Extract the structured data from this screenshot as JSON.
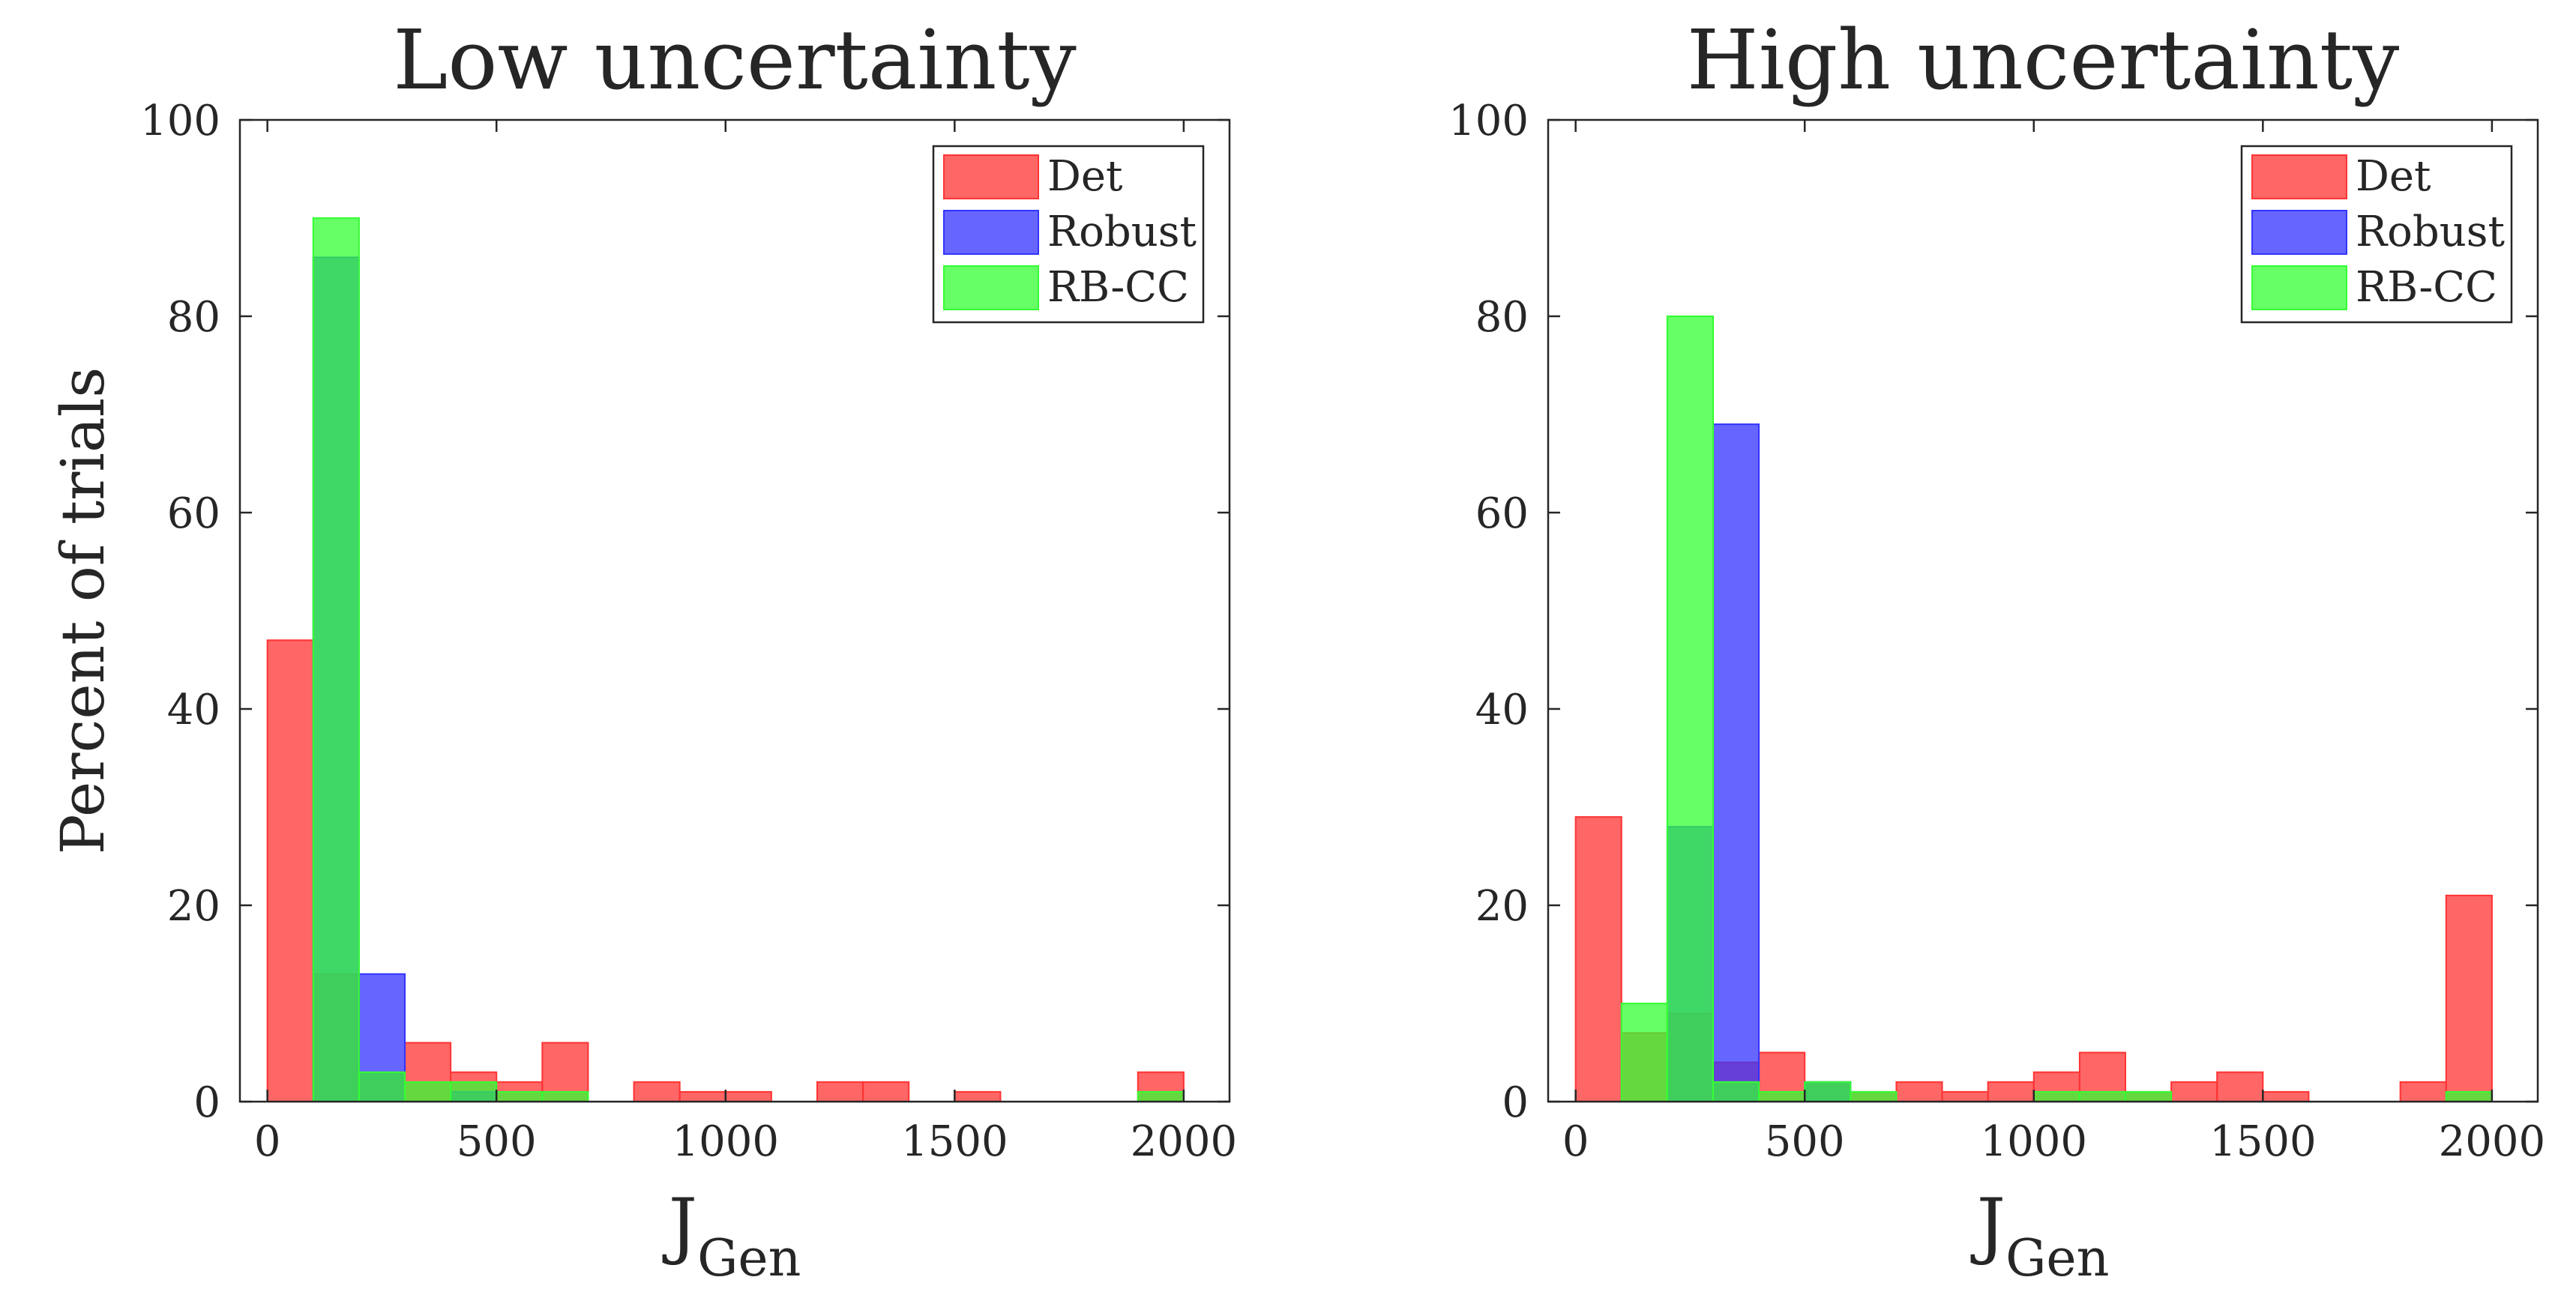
{
  "chart_data": [
    {
      "type": "bar",
      "subtype": "overlaid-histogram",
      "title": "Low uncertainty",
      "xlabel": "J",
      "xlabel_subscript": "Gen",
      "ylabel": "Percent of trials",
      "xlim": [
        -60,
        2100
      ],
      "ylim": [
        0,
        100
      ],
      "xticks": [
        0,
        500,
        1000,
        1500,
        2000
      ],
      "yticks": [
        0,
        20,
        40,
        60,
        80,
        100
      ],
      "bin_width": 100,
      "bin_starts": [
        0,
        100,
        200,
        300,
        400,
        500,
        600,
        700,
        800,
        900,
        1000,
        1100,
        1200,
        1300,
        1400,
        1500,
        1600,
        1700,
        1800,
        1900
      ],
      "legend_position": "top-right",
      "series": [
        {
          "name": "Det",
          "color": "#ff3333",
          "values": [
            47,
            13,
            3,
            6,
            3,
            2,
            6,
            0,
            2,
            1,
            1,
            0,
            2,
            2,
            0,
            1,
            0,
            0,
            0,
            3
          ]
        },
        {
          "name": "Robust",
          "color": "#3333ff",
          "values": [
            0,
            86,
            13,
            0,
            1,
            0,
            0,
            0,
            0,
            0,
            0,
            0,
            0,
            0,
            0,
            0,
            0,
            0,
            0,
            0
          ]
        },
        {
          "name": "RB-CC",
          "color": "#33ff33",
          "values": [
            0,
            90,
            3,
            2,
            2,
            1,
            1,
            0,
            0,
            0,
            0,
            0,
            0,
            0,
            0,
            0,
            0,
            0,
            0,
            1
          ]
        }
      ]
    },
    {
      "type": "bar",
      "subtype": "overlaid-histogram",
      "title": "High uncertainty",
      "xlabel": "J",
      "xlabel_subscript": "Gen",
      "ylabel": "",
      "xlim": [
        -60,
        2100
      ],
      "ylim": [
        0,
        100
      ],
      "xticks": [
        0,
        500,
        1000,
        1500,
        2000
      ],
      "yticks": [
        0,
        20,
        40,
        60,
        80,
        100
      ],
      "bin_width": 100,
      "bin_starts": [
        0,
        100,
        200,
        300,
        400,
        500,
        600,
        700,
        800,
        900,
        1000,
        1100,
        1200,
        1300,
        1400,
        1500,
        1600,
        1700,
        1800,
        1900
      ],
      "legend_position": "top-right",
      "series": [
        {
          "name": "Det",
          "color": "#ff3333",
          "values": [
            29,
            7,
            9,
            4,
            5,
            2,
            1,
            2,
            1,
            2,
            3,
            5,
            1,
            2,
            3,
            1,
            0,
            0,
            2,
            21
          ]
        },
        {
          "name": "Robust",
          "color": "#3333ff",
          "values": [
            0,
            0,
            28,
            69,
            0,
            2,
            0,
            0,
            0,
            0,
            0,
            0,
            0,
            0,
            0,
            0,
            0,
            0,
            0,
            0
          ]
        },
        {
          "name": "RB-CC",
          "color": "#33ff33",
          "values": [
            0,
            10,
            80,
            2,
            1,
            2,
            1,
            0,
            0,
            0,
            1,
            1,
            1,
            0,
            0,
            0,
            0,
            0,
            0,
            1
          ]
        }
      ]
    }
  ]
}
